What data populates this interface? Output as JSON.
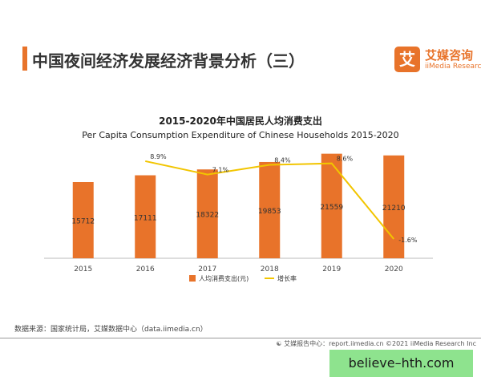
{
  "header": {
    "title": "中国夜间经济发展经济背景分析（三）",
    "logo_mark": "艾",
    "logo_cn": "艾媒咨询",
    "logo_en": "iiMedia Research"
  },
  "chart_data": {
    "type": "bar",
    "title": "2015-2020年中国居民人均消费支出",
    "subtitle": "Per Capita Consumption Expenditure of Chinese Households 2015-2020",
    "categories": [
      "2015",
      "2016",
      "2017",
      "2018",
      "2019",
      "2020"
    ],
    "series": [
      {
        "name": "人均消费支出(元)",
        "type": "bar",
        "color": "#e8732a",
        "values": [
          15712,
          17111,
          18322,
          19853,
          21559,
          21210
        ],
        "labels": [
          "15712",
          "17111",
          "18322",
          "19853",
          "21559",
          "21210"
        ]
      },
      {
        "name": "增长率",
        "type": "line",
        "color": "#f2c500",
        "values": [
          null,
          8.9,
          7.1,
          8.4,
          8.6,
          -1.6
        ],
        "labels": [
          "",
          "8.9%",
          "7.1%",
          "8.4%",
          "8.6%",
          "-1.6%"
        ]
      }
    ],
    "legend_position": "bottom",
    "grid": false
  },
  "footer": {
    "source": "数据来源：国家统计局，艾媒数据中心（data.iimedia.cn）",
    "credit_icon": "☯",
    "credit": "艾媒报告中心：report.iimedia.cn  ©2021  iiMedia Research  Inc"
  },
  "watermark": "believe–hth.com"
}
